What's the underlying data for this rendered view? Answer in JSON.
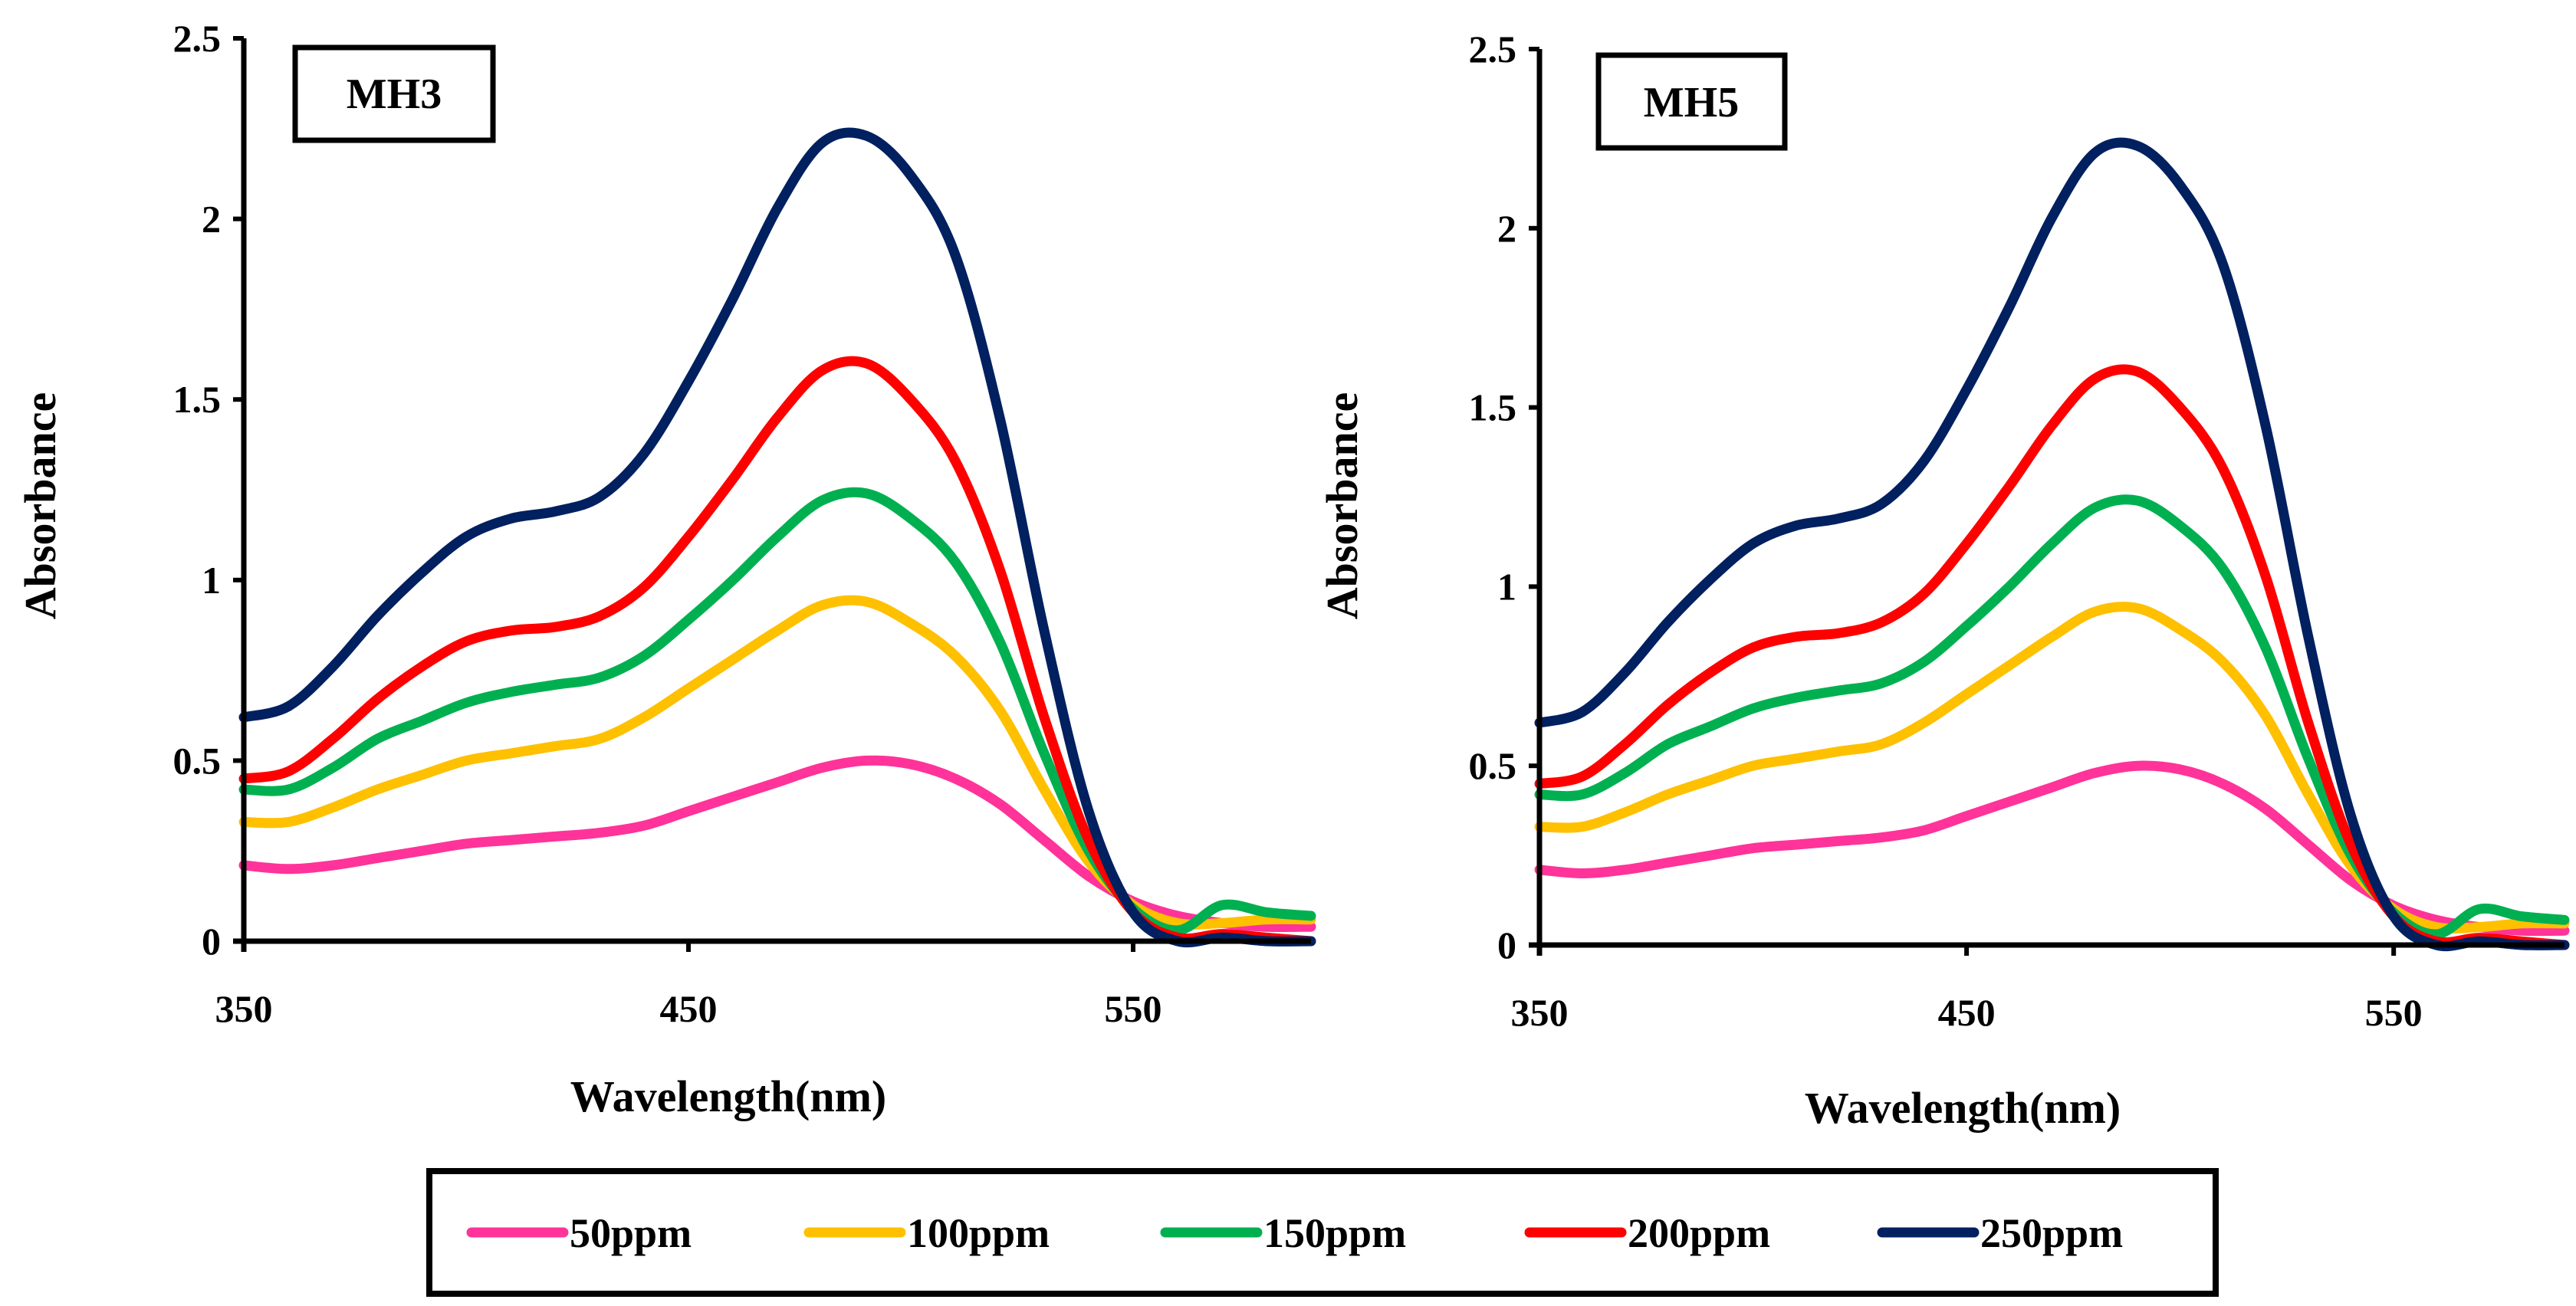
{
  "chart_data": [
    {
      "type": "line",
      "tag": "MH3",
      "xlabel": "Wavelength(nm)",
      "ylabel": "Absorbance",
      "xlim": [
        350,
        590
      ],
      "ylim": [
        0,
        2.5
      ],
      "xticks": [
        "350",
        "450",
        "550"
      ],
      "yticks": [
        "0",
        "0.5",
        "1",
        "1.5",
        "2",
        "2.5"
      ],
      "grid": false,
      "series": [
        {
          "name": "50ppm",
          "color": "#FF3399",
          "x": [
            350,
            360,
            370,
            380,
            390,
            400,
            410,
            420,
            430,
            440,
            450,
            460,
            470,
            480,
            490,
            500,
            510,
            520,
            530,
            540,
            550,
            560,
            570,
            580,
            590
          ],
          "y": [
            0.21,
            0.2,
            0.21,
            0.23,
            0.25,
            0.27,
            0.28,
            0.29,
            0.3,
            0.32,
            0.36,
            0.4,
            0.44,
            0.48,
            0.5,
            0.49,
            0.45,
            0.38,
            0.28,
            0.18,
            0.11,
            0.07,
            0.05,
            0.04,
            0.04
          ]
        },
        {
          "name": "100ppm",
          "color": "#FFC000",
          "x": [
            350,
            360,
            370,
            380,
            390,
            400,
            410,
            420,
            430,
            440,
            450,
            460,
            470,
            480,
            490,
            500,
            510,
            520,
            530,
            540,
            550,
            560,
            570,
            580,
            590
          ],
          "y": [
            0.33,
            0.33,
            0.37,
            0.42,
            0.46,
            0.5,
            0.52,
            0.54,
            0.56,
            0.62,
            0.7,
            0.78,
            0.86,
            0.93,
            0.94,
            0.88,
            0.79,
            0.64,
            0.42,
            0.22,
            0.1,
            0.05,
            0.05,
            0.06,
            0.06
          ]
        },
        {
          "name": "150ppm",
          "color": "#00B050",
          "x": [
            350,
            360,
            370,
            380,
            390,
            400,
            410,
            420,
            430,
            440,
            450,
            460,
            470,
            480,
            490,
            500,
            510,
            520,
            530,
            540,
            550,
            560,
            570,
            580,
            590
          ],
          "y": [
            0.42,
            0.42,
            0.48,
            0.56,
            0.61,
            0.66,
            0.69,
            0.71,
            0.73,
            0.79,
            0.89,
            1.0,
            1.12,
            1.22,
            1.24,
            1.17,
            1.05,
            0.83,
            0.52,
            0.25,
            0.09,
            0.03,
            0.1,
            0.08,
            0.07
          ]
        },
        {
          "name": "200ppm",
          "color": "#FF0000",
          "x": [
            350,
            360,
            370,
            380,
            390,
            400,
            410,
            420,
            430,
            440,
            450,
            460,
            470,
            480,
            490,
            500,
            510,
            520,
            530,
            540,
            550,
            560,
            570,
            580,
            590
          ],
          "y": [
            0.45,
            0.47,
            0.56,
            0.67,
            0.76,
            0.83,
            0.86,
            0.87,
            0.9,
            0.98,
            1.12,
            1.28,
            1.45,
            1.58,
            1.6,
            1.5,
            1.33,
            1.03,
            0.62,
            0.28,
            0.08,
            0.01,
            0.02,
            0.01,
            0.0
          ]
        },
        {
          "name": "250ppm",
          "color": "#002060",
          "x": [
            350,
            360,
            370,
            380,
            390,
            400,
            410,
            420,
            430,
            440,
            450,
            460,
            470,
            480,
            490,
            500,
            510,
            520,
            530,
            540,
            550,
            560,
            570,
            580,
            590
          ],
          "y": [
            0.62,
            0.65,
            0.76,
            0.9,
            1.02,
            1.12,
            1.17,
            1.19,
            1.23,
            1.35,
            1.55,
            1.78,
            2.03,
            2.21,
            2.23,
            2.12,
            1.9,
            1.45,
            0.86,
            0.36,
            0.08,
            0.0,
            0.01,
            0.0,
            0.0
          ]
        }
      ]
    },
    {
      "type": "line",
      "tag": "MH5",
      "xlabel": "Wavelength(nm)",
      "ylabel": "Absorbance",
      "xlim": [
        350,
        590
      ],
      "ylim": [
        0,
        2.5
      ],
      "xticks": [
        "350",
        "450",
        "550"
      ],
      "yticks": [
        "0",
        "0.5",
        "1",
        "1.5",
        "2",
        "2.5"
      ],
      "grid": false,
      "series": [
        {
          "name": "50ppm",
          "color": "#FF3399",
          "x": [
            350,
            360,
            370,
            380,
            390,
            400,
            410,
            420,
            430,
            440,
            450,
            460,
            470,
            480,
            490,
            500,
            510,
            520,
            530,
            540,
            550,
            560,
            570,
            580,
            590
          ],
          "y": [
            0.21,
            0.2,
            0.21,
            0.23,
            0.25,
            0.27,
            0.28,
            0.29,
            0.3,
            0.32,
            0.36,
            0.4,
            0.44,
            0.48,
            0.5,
            0.49,
            0.45,
            0.38,
            0.28,
            0.18,
            0.11,
            0.07,
            0.05,
            0.04,
            0.04
          ]
        },
        {
          "name": "100ppm",
          "color": "#FFC000",
          "x": [
            350,
            360,
            370,
            380,
            390,
            400,
            410,
            420,
            430,
            440,
            450,
            460,
            470,
            480,
            490,
            500,
            510,
            520,
            530,
            540,
            550,
            560,
            570,
            580,
            590
          ],
          "y": [
            0.33,
            0.33,
            0.37,
            0.42,
            0.46,
            0.5,
            0.52,
            0.54,
            0.56,
            0.62,
            0.7,
            0.78,
            0.86,
            0.93,
            0.94,
            0.88,
            0.79,
            0.64,
            0.42,
            0.22,
            0.1,
            0.05,
            0.05,
            0.06,
            0.06
          ]
        },
        {
          "name": "150ppm",
          "color": "#00B050",
          "x": [
            350,
            360,
            370,
            380,
            390,
            400,
            410,
            420,
            430,
            440,
            450,
            460,
            470,
            480,
            490,
            500,
            510,
            520,
            530,
            540,
            550,
            560,
            570,
            580,
            590
          ],
          "y": [
            0.42,
            0.42,
            0.48,
            0.56,
            0.61,
            0.66,
            0.69,
            0.71,
            0.73,
            0.79,
            0.89,
            1.0,
            1.12,
            1.22,
            1.24,
            1.17,
            1.05,
            0.83,
            0.52,
            0.25,
            0.09,
            0.03,
            0.1,
            0.08,
            0.07
          ]
        },
        {
          "name": "200ppm",
          "color": "#FF0000",
          "x": [
            350,
            360,
            370,
            380,
            390,
            400,
            410,
            420,
            430,
            440,
            450,
            460,
            470,
            480,
            490,
            500,
            510,
            520,
            530,
            540,
            550,
            560,
            570,
            580,
            590
          ],
          "y": [
            0.45,
            0.47,
            0.56,
            0.67,
            0.76,
            0.83,
            0.86,
            0.87,
            0.9,
            0.98,
            1.12,
            1.28,
            1.45,
            1.58,
            1.6,
            1.5,
            1.33,
            1.03,
            0.62,
            0.28,
            0.08,
            0.01,
            0.02,
            0.01,
            0.0
          ]
        },
        {
          "name": "250ppm",
          "color": "#002060",
          "x": [
            350,
            360,
            370,
            380,
            390,
            400,
            410,
            420,
            430,
            440,
            450,
            460,
            470,
            480,
            490,
            500,
            510,
            520,
            530,
            540,
            550,
            560,
            570,
            580,
            590
          ],
          "y": [
            0.62,
            0.65,
            0.76,
            0.9,
            1.02,
            1.12,
            1.17,
            1.19,
            1.23,
            1.35,
            1.55,
            1.78,
            2.03,
            2.21,
            2.23,
            2.12,
            1.9,
            1.45,
            0.86,
            0.36,
            0.08,
            0.0,
            0.01,
            0.0,
            0.0
          ]
        }
      ]
    }
  ],
  "legend": {
    "placement": "bottom-center",
    "items": [
      {
        "label": "50ppm",
        "color": "#FF3399"
      },
      {
        "label": "100ppm",
        "color": "#FFC000"
      },
      {
        "label": "150ppm",
        "color": "#00B050"
      },
      {
        "label": "200ppm",
        "color": "#FF0000"
      },
      {
        "label": "250ppm",
        "color": "#002060"
      }
    ]
  }
}
